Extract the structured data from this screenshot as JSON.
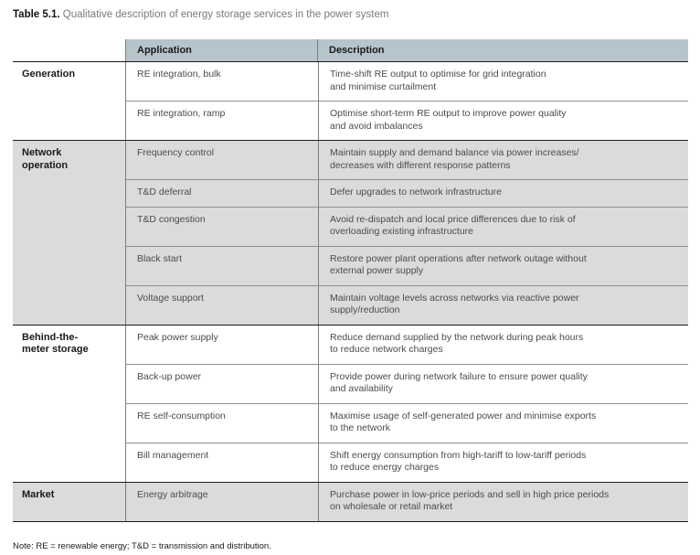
{
  "title": {
    "label": "Table 5.1.",
    "rest": " Qualitative description of energy storage services in the power system"
  },
  "table": {
    "headers": {
      "application": "Application",
      "description": "Description"
    },
    "groups": [
      {
        "name": "Generation",
        "shaded": false,
        "rows": [
          {
            "application": "RE integration, bulk",
            "description": "Time-shift RE output to optimise for grid integration\nand minimise curtailment"
          },
          {
            "application": "RE integration, ramp",
            "description": "Optimise short-term RE output to improve power quality\nand avoid imbalances"
          }
        ]
      },
      {
        "name": "Network\noperation",
        "shaded": true,
        "rows": [
          {
            "application": "Frequency control",
            "description": "Maintain supply and demand balance via power increases/\ndecreases with different response patterns"
          },
          {
            "application": "T&D deferral",
            "description": "Defer upgrades to network infrastructure"
          },
          {
            "application": "T&D congestion",
            "description": "Avoid re-dispatch and local price differences due to risk of\noverloading existing infrastructure"
          },
          {
            "application": "Black start",
            "description": "Restore power plant operations after network outage without\nexternal power supply"
          },
          {
            "application": "Voltage support",
            "description": "Maintain voltage levels across networks via reactive power\nsupply/reduction"
          }
        ]
      },
      {
        "name": "Behind-the-\nmeter storage",
        "shaded": false,
        "rows": [
          {
            "application": "Peak power supply",
            "description": "Reduce demand supplied by the network during peak hours\nto reduce network charges"
          },
          {
            "application": "Back-up power",
            "description": "Provide power during network failure to ensure power quality\nand availability"
          },
          {
            "application": "RE self-consumption",
            "description": "Maximise usage of self-generated power and minimise exports\nto the network"
          },
          {
            "application": "Bill management",
            "description": "Shift energy consumption from high-tariff to low-tariff periods\nto reduce energy charges"
          }
        ]
      },
      {
        "name": "Market",
        "shaded": true,
        "rows": [
          {
            "application": "Energy arbitrage",
            "description": "Purchase power in low-price periods and sell in high price periods\non wholesale or retail market"
          }
        ]
      }
    ]
  },
  "note": "Note: RE = renewable energy; T&D = transmission and distribution.",
  "colors": {
    "header_bg": "#b6c4cb",
    "shaded_row_bg": "#dbdbdb",
    "section_line": "#1c1c1c",
    "divider_line": "#8f8f8f",
    "body_text": "#4b4b4b",
    "title_gray": "#7a7a7a"
  }
}
